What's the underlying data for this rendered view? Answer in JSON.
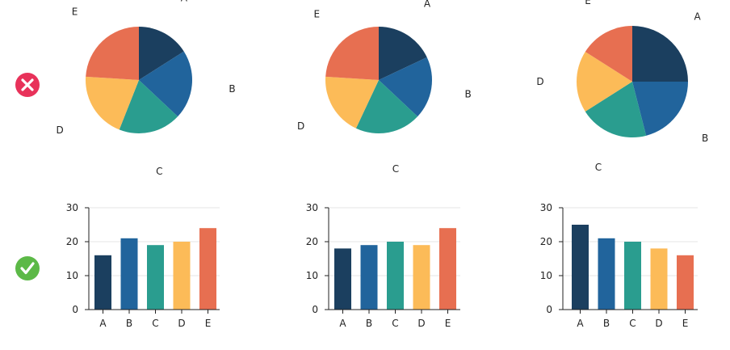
{
  "colors": {
    "A": "#1b3f5f",
    "B": "#21649c",
    "C": "#2a9d8f",
    "D": "#fcbb58",
    "E": "#e76f51",
    "bad_badge": "#e8325a",
    "good_badge": "#5cb947",
    "axis": "#222222",
    "grid": "#e6e6e6"
  },
  "icons": {
    "bad": "x-mark-icon",
    "good": "check-mark-icon"
  },
  "chart_data": [
    {
      "type": "pie",
      "categories": [
        "A",
        "B",
        "C",
        "D",
        "E"
      ],
      "values": [
        16,
        21,
        19,
        20,
        24
      ]
    },
    {
      "type": "pie",
      "categories": [
        "A",
        "B",
        "C",
        "D",
        "E"
      ],
      "values": [
        18,
        19,
        20,
        19,
        24
      ]
    },
    {
      "type": "pie",
      "categories": [
        "A",
        "B",
        "C",
        "D",
        "E"
      ],
      "values": [
        25,
        21,
        20,
        18,
        16
      ]
    },
    {
      "type": "bar",
      "categories": [
        "A",
        "B",
        "C",
        "D",
        "E"
      ],
      "values": [
        16,
        21,
        19,
        20,
        24
      ],
      "ylim": [
        0,
        30
      ],
      "yticks": [
        0,
        10,
        20,
        30
      ],
      "grid": true
    },
    {
      "type": "bar",
      "categories": [
        "A",
        "B",
        "C",
        "D",
        "E"
      ],
      "values": [
        18,
        19,
        20,
        19,
        24
      ],
      "ylim": [
        0,
        30
      ],
      "yticks": [
        0,
        10,
        20,
        30
      ],
      "grid": true
    },
    {
      "type": "bar",
      "categories": [
        "A",
        "B",
        "C",
        "D",
        "E"
      ],
      "values": [
        25,
        21,
        20,
        18,
        16
      ],
      "ylim": [
        0,
        30
      ],
      "yticks": [
        0,
        10,
        20,
        30
      ],
      "grid": true
    }
  ]
}
